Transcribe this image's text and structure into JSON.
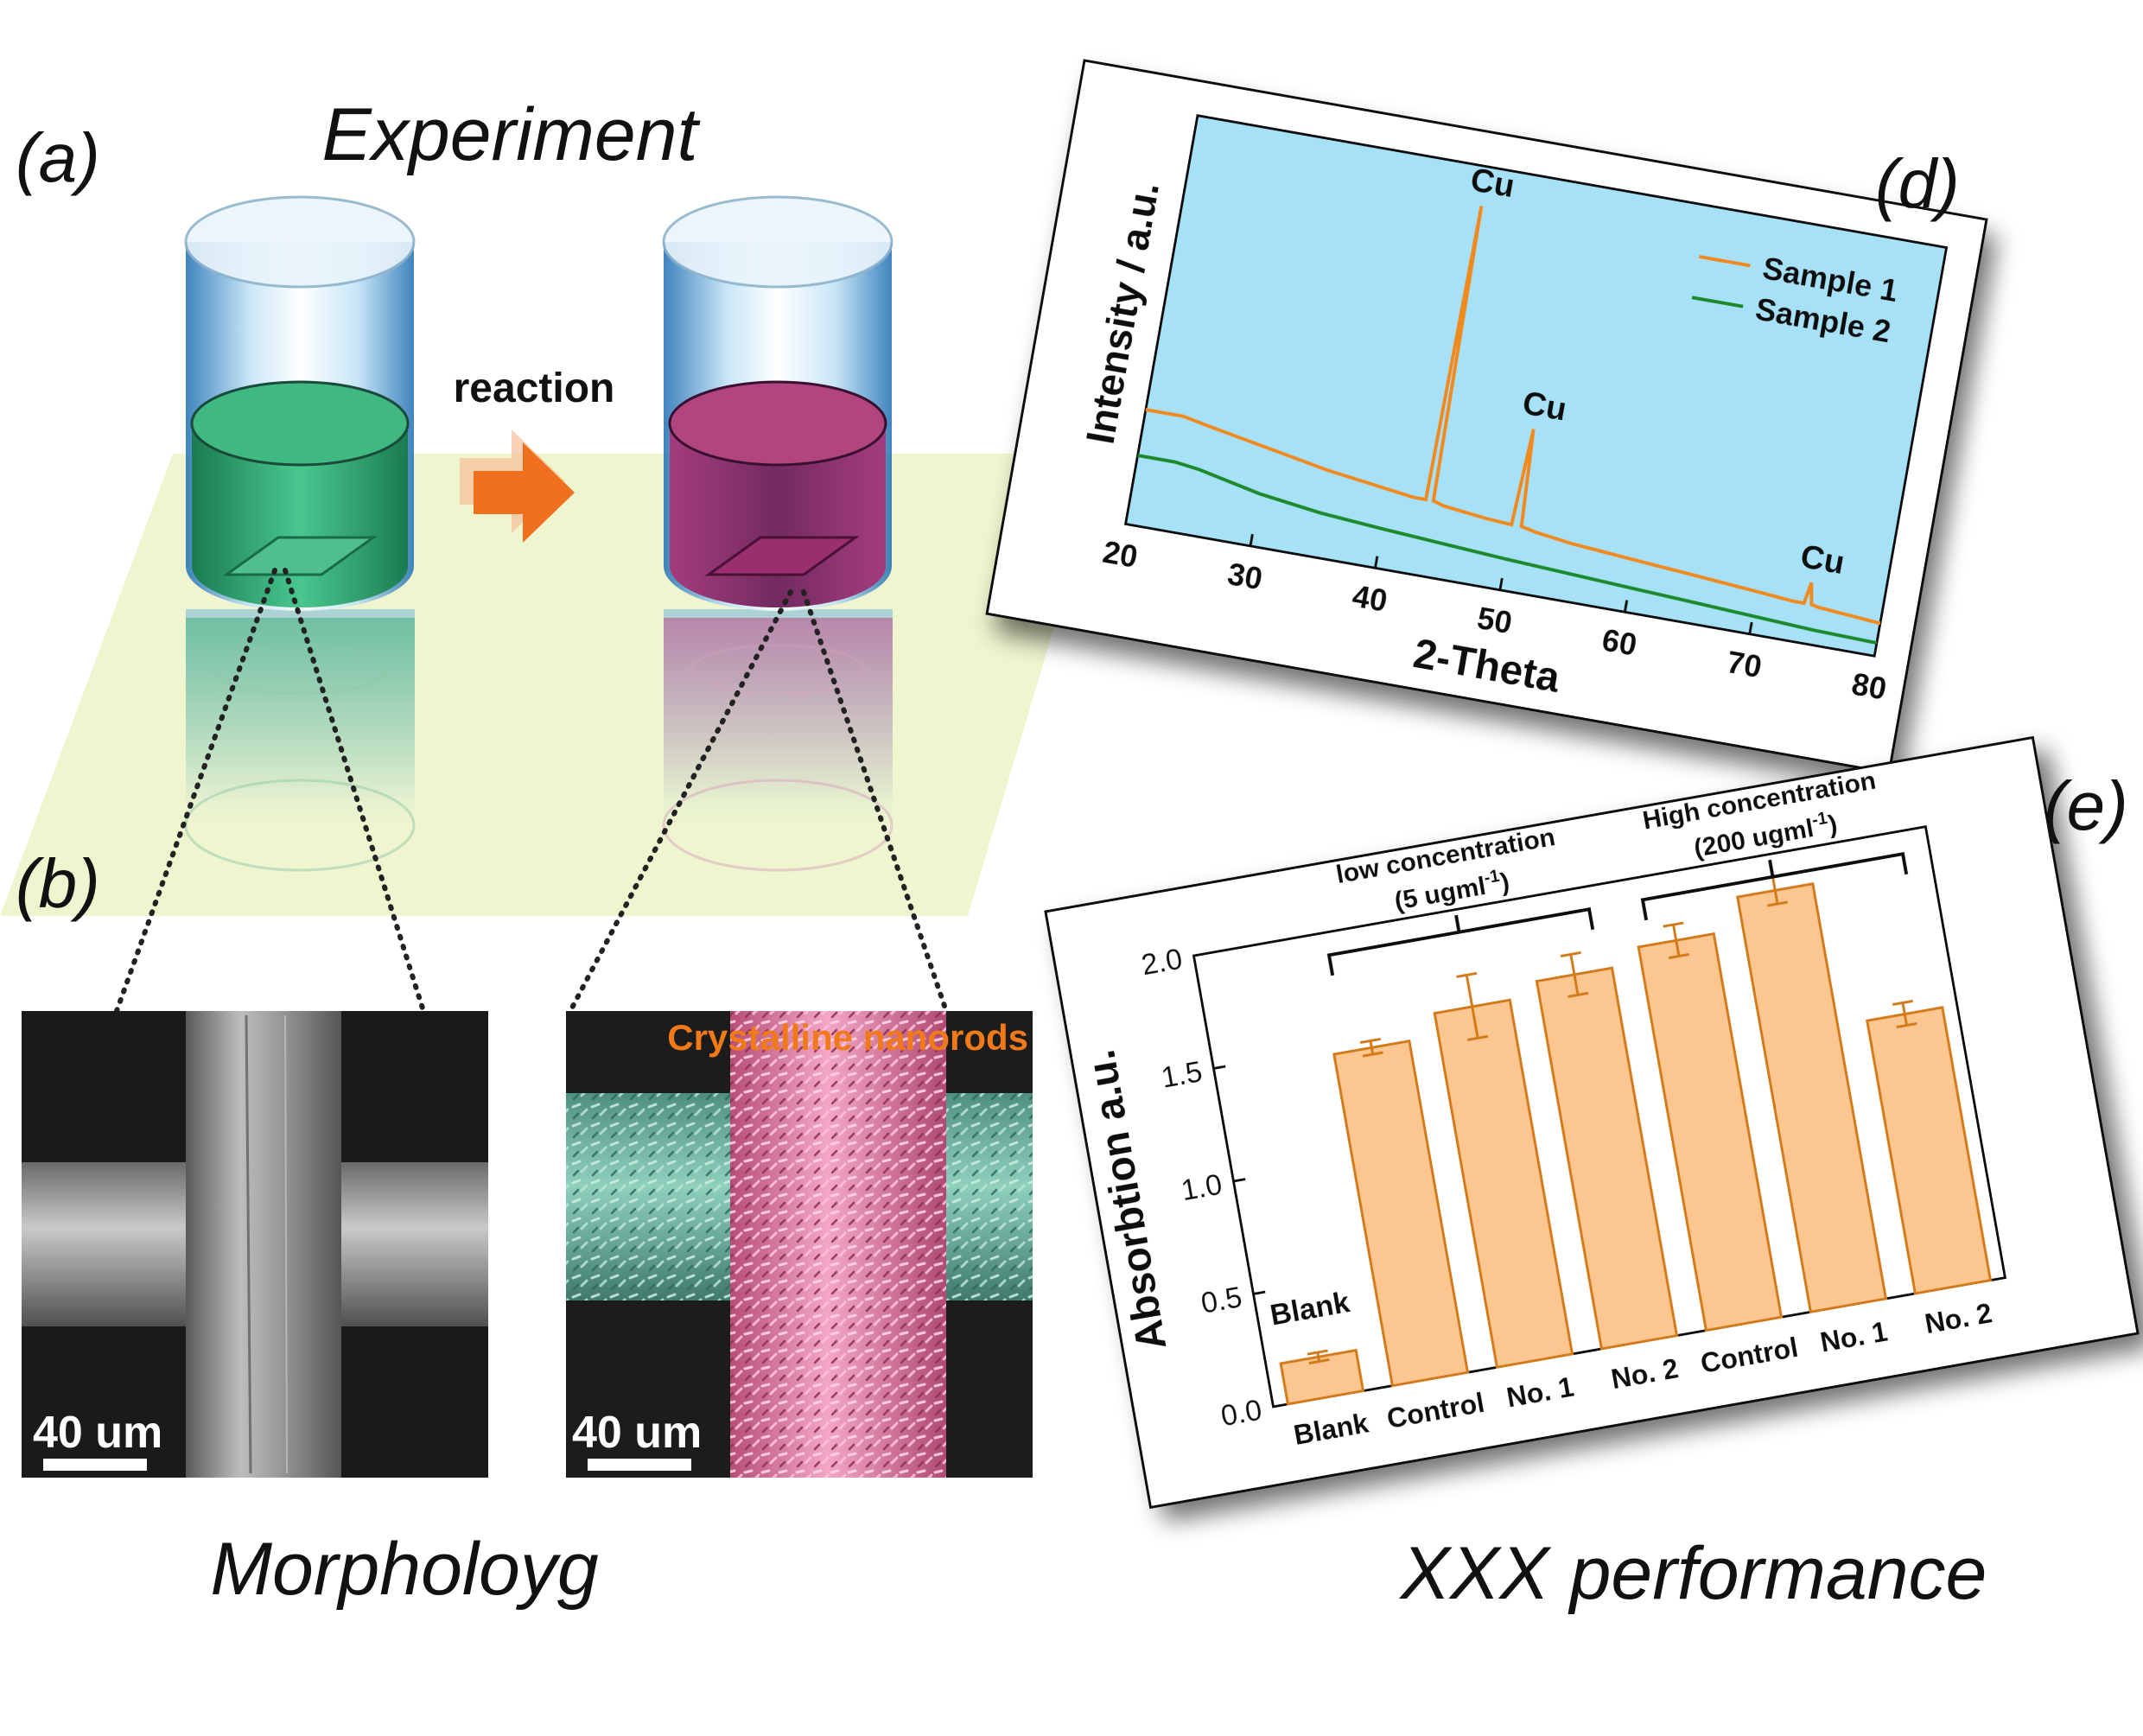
{
  "labels": {
    "a": "(a)",
    "b": "(b)",
    "d": "(d)",
    "e": "(e)"
  },
  "titles": {
    "experiment": "Experiment",
    "reaction": "reaction",
    "morphology": "Morpholoyg",
    "performance": "XXX performance"
  },
  "sem": {
    "left_scale": "40 um",
    "right_scale": "40 um",
    "right_caption": "Crystalline nanorods"
  },
  "colors": {
    "green_liquid": "#2e9e6a",
    "magenta_liquid": "#8e2a68",
    "arrow": "#f07020",
    "floor": "#eef5cf",
    "xrd_bg": "#a6e1f7",
    "sample1": "#f08a1e",
    "sample2": "#1e8a2a",
    "bar_fill": "#fbc690",
    "bar_edge": "#d27a18"
  },
  "chart_data": [
    {
      "type": "line",
      "xlabel": "2-Theta",
      "ylabel": "Intensity / a.u.",
      "xlim": [
        20,
        80
      ],
      "x_ticks": [
        "20",
        "30",
        "40",
        "50",
        "60",
        "70",
        "80"
      ],
      "legend_position": "top-right",
      "annotations": [
        "Cu",
        "Cu",
        "Cu"
      ],
      "peaks_x": [
        43.3,
        50.4,
        74.1
      ],
      "series": [
        {
          "name": "Sample 1",
          "x": [
            20,
            23,
            25,
            30,
            35,
            40,
            42,
            43,
            43.3,
            43.6,
            44.5,
            48,
            50,
            50.4,
            50.8,
            52,
            55,
            60,
            65,
            70,
            73,
            73.8,
            74.1,
            74.4,
            75,
            80
          ],
          "y": [
            0.5,
            0.5,
            0.47,
            0.4,
            0.33,
            0.28,
            0.26,
            0.26,
            2.06,
            0.26,
            0.24,
            0.21,
            0.2,
            0.79,
            0.2,
            0.18,
            0.15,
            0.12,
            0.09,
            0.06,
            0.04,
            0.04,
            0.17,
            0.04,
            0.03,
            0
          ]
        },
        {
          "name": "Sample 2",
          "x": [
            20,
            23,
            25,
            30,
            35,
            40,
            45,
            50,
            55,
            60,
            65,
            70,
            75,
            80
          ],
          "y": [
            0.22,
            0.22,
            0.2,
            0.12,
            0.07,
            0.04,
            0.015,
            -0.01,
            -0.03,
            -0.05,
            -0.07,
            -0.09,
            -0.11,
            -0.12
          ]
        }
      ]
    },
    {
      "type": "bar",
      "ylabel": "Absorbtion a.u.",
      "ylim": [
        0,
        2
      ],
      "y_ticks": [
        "0.0",
        "0.5",
        "1.0",
        "1.5",
        "2.0"
      ],
      "categories": [
        "Blank",
        "Control",
        "No. 1",
        "No. 2",
        "Control",
        "No. 1",
        "No. 2"
      ],
      "values": [
        0.18,
        1.47,
        1.57,
        1.63,
        1.7,
        1.84,
        1.21
      ],
      "errors": [
        0.02,
        0.03,
        0.14,
        0.09,
        0.07,
        0.06,
        0.05
      ],
      "annotations": [
        "Blank"
      ],
      "groups": [
        {
          "line1": "low concentration",
          "line2": "(5 ugml",
          "sup": "-1",
          "close": ")"
        },
        {
          "line1": "High concentration",
          "line2": "(200 ugml",
          "sup": "-1",
          "close": ")"
        }
      ]
    }
  ]
}
